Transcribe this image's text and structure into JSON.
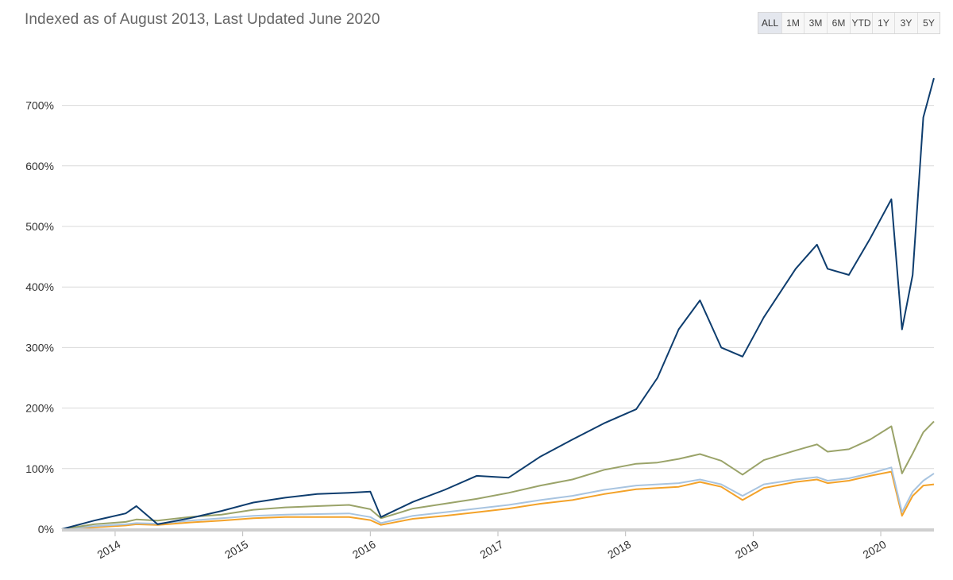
{
  "header": {
    "subtitle": "Indexed as of August 2013, Last Updated June 2020"
  },
  "range_selector": {
    "active": "ALL",
    "buttons": [
      "ALL",
      "1M",
      "3M",
      "6M",
      "YTD",
      "1Y",
      "3Y",
      "5Y"
    ]
  },
  "chart_data": {
    "type": "line",
    "title": "",
    "xlabel": "",
    "ylabel": "",
    "x_ticks": [
      "2014",
      "2015",
      "2016",
      "2017",
      "2018",
      "2019",
      "2020"
    ],
    "y_ticks": [
      "0%",
      "100%",
      "200%",
      "300%",
      "400%",
      "500%",
      "600%",
      "700%"
    ],
    "xlim": [
      "2013-08",
      "2020-06"
    ],
    "ylim": [
      0,
      750
    ],
    "grid": true,
    "legend": "none",
    "x": [
      "2013-08",
      "2013-11",
      "2014-02",
      "2014-03",
      "2014-05",
      "2014-08",
      "2014-11",
      "2015-02",
      "2015-05",
      "2015-08",
      "2015-11",
      "2016-01",
      "2016-02",
      "2016-05",
      "2016-08",
      "2016-11",
      "2017-02",
      "2017-05",
      "2017-08",
      "2017-11",
      "2018-02",
      "2018-04",
      "2018-06",
      "2018-08",
      "2018-10",
      "2018-12",
      "2019-02",
      "2019-05",
      "2019-07",
      "2019-08",
      "2019-10",
      "2019-12",
      "2020-02",
      "2020-03",
      "2020-04",
      "2020-05",
      "2020-06"
    ],
    "series": [
      {
        "color": "#0e3d6e",
        "values": [
          0,
          14,
          26,
          38,
          8,
          18,
          30,
          44,
          52,
          58,
          60,
          62,
          20,
          45,
          65,
          88,
          85,
          120,
          148,
          175,
          198,
          250,
          330,
          378,
          300,
          285,
          350,
          430,
          470,
          430,
          420,
          480,
          545,
          330,
          420,
          680,
          745
        ]
      },
      {
        "color": "#9aa369",
        "values": [
          0,
          8,
          12,
          16,
          14,
          20,
          24,
          32,
          36,
          38,
          40,
          33,
          18,
          34,
          42,
          50,
          60,
          72,
          82,
          98,
          108,
          110,
          116,
          124,
          113,
          90,
          114,
          130,
          140,
          128,
          132,
          148,
          170,
          92,
          125,
          160,
          178
        ]
      },
      {
        "color": "#a8c4e0",
        "values": [
          0,
          5,
          8,
          10,
          9,
          14,
          18,
          22,
          24,
          25,
          26,
          20,
          10,
          22,
          28,
          34,
          40,
          48,
          55,
          65,
          72,
          74,
          76,
          82,
          74,
          55,
          74,
          82,
          86,
          80,
          84,
          92,
          102,
          28,
          62,
          80,
          92
        ]
      },
      {
        "color": "#f3a229",
        "values": [
          0,
          3,
          6,
          8,
          7,
          11,
          14,
          18,
          20,
          20,
          20,
          15,
          7,
          17,
          22,
          28,
          34,
          42,
          48,
          58,
          66,
          68,
          70,
          78,
          70,
          48,
          68,
          78,
          82,
          76,
          80,
          88,
          95,
          22,
          55,
          72,
          74
        ]
      }
    ]
  }
}
